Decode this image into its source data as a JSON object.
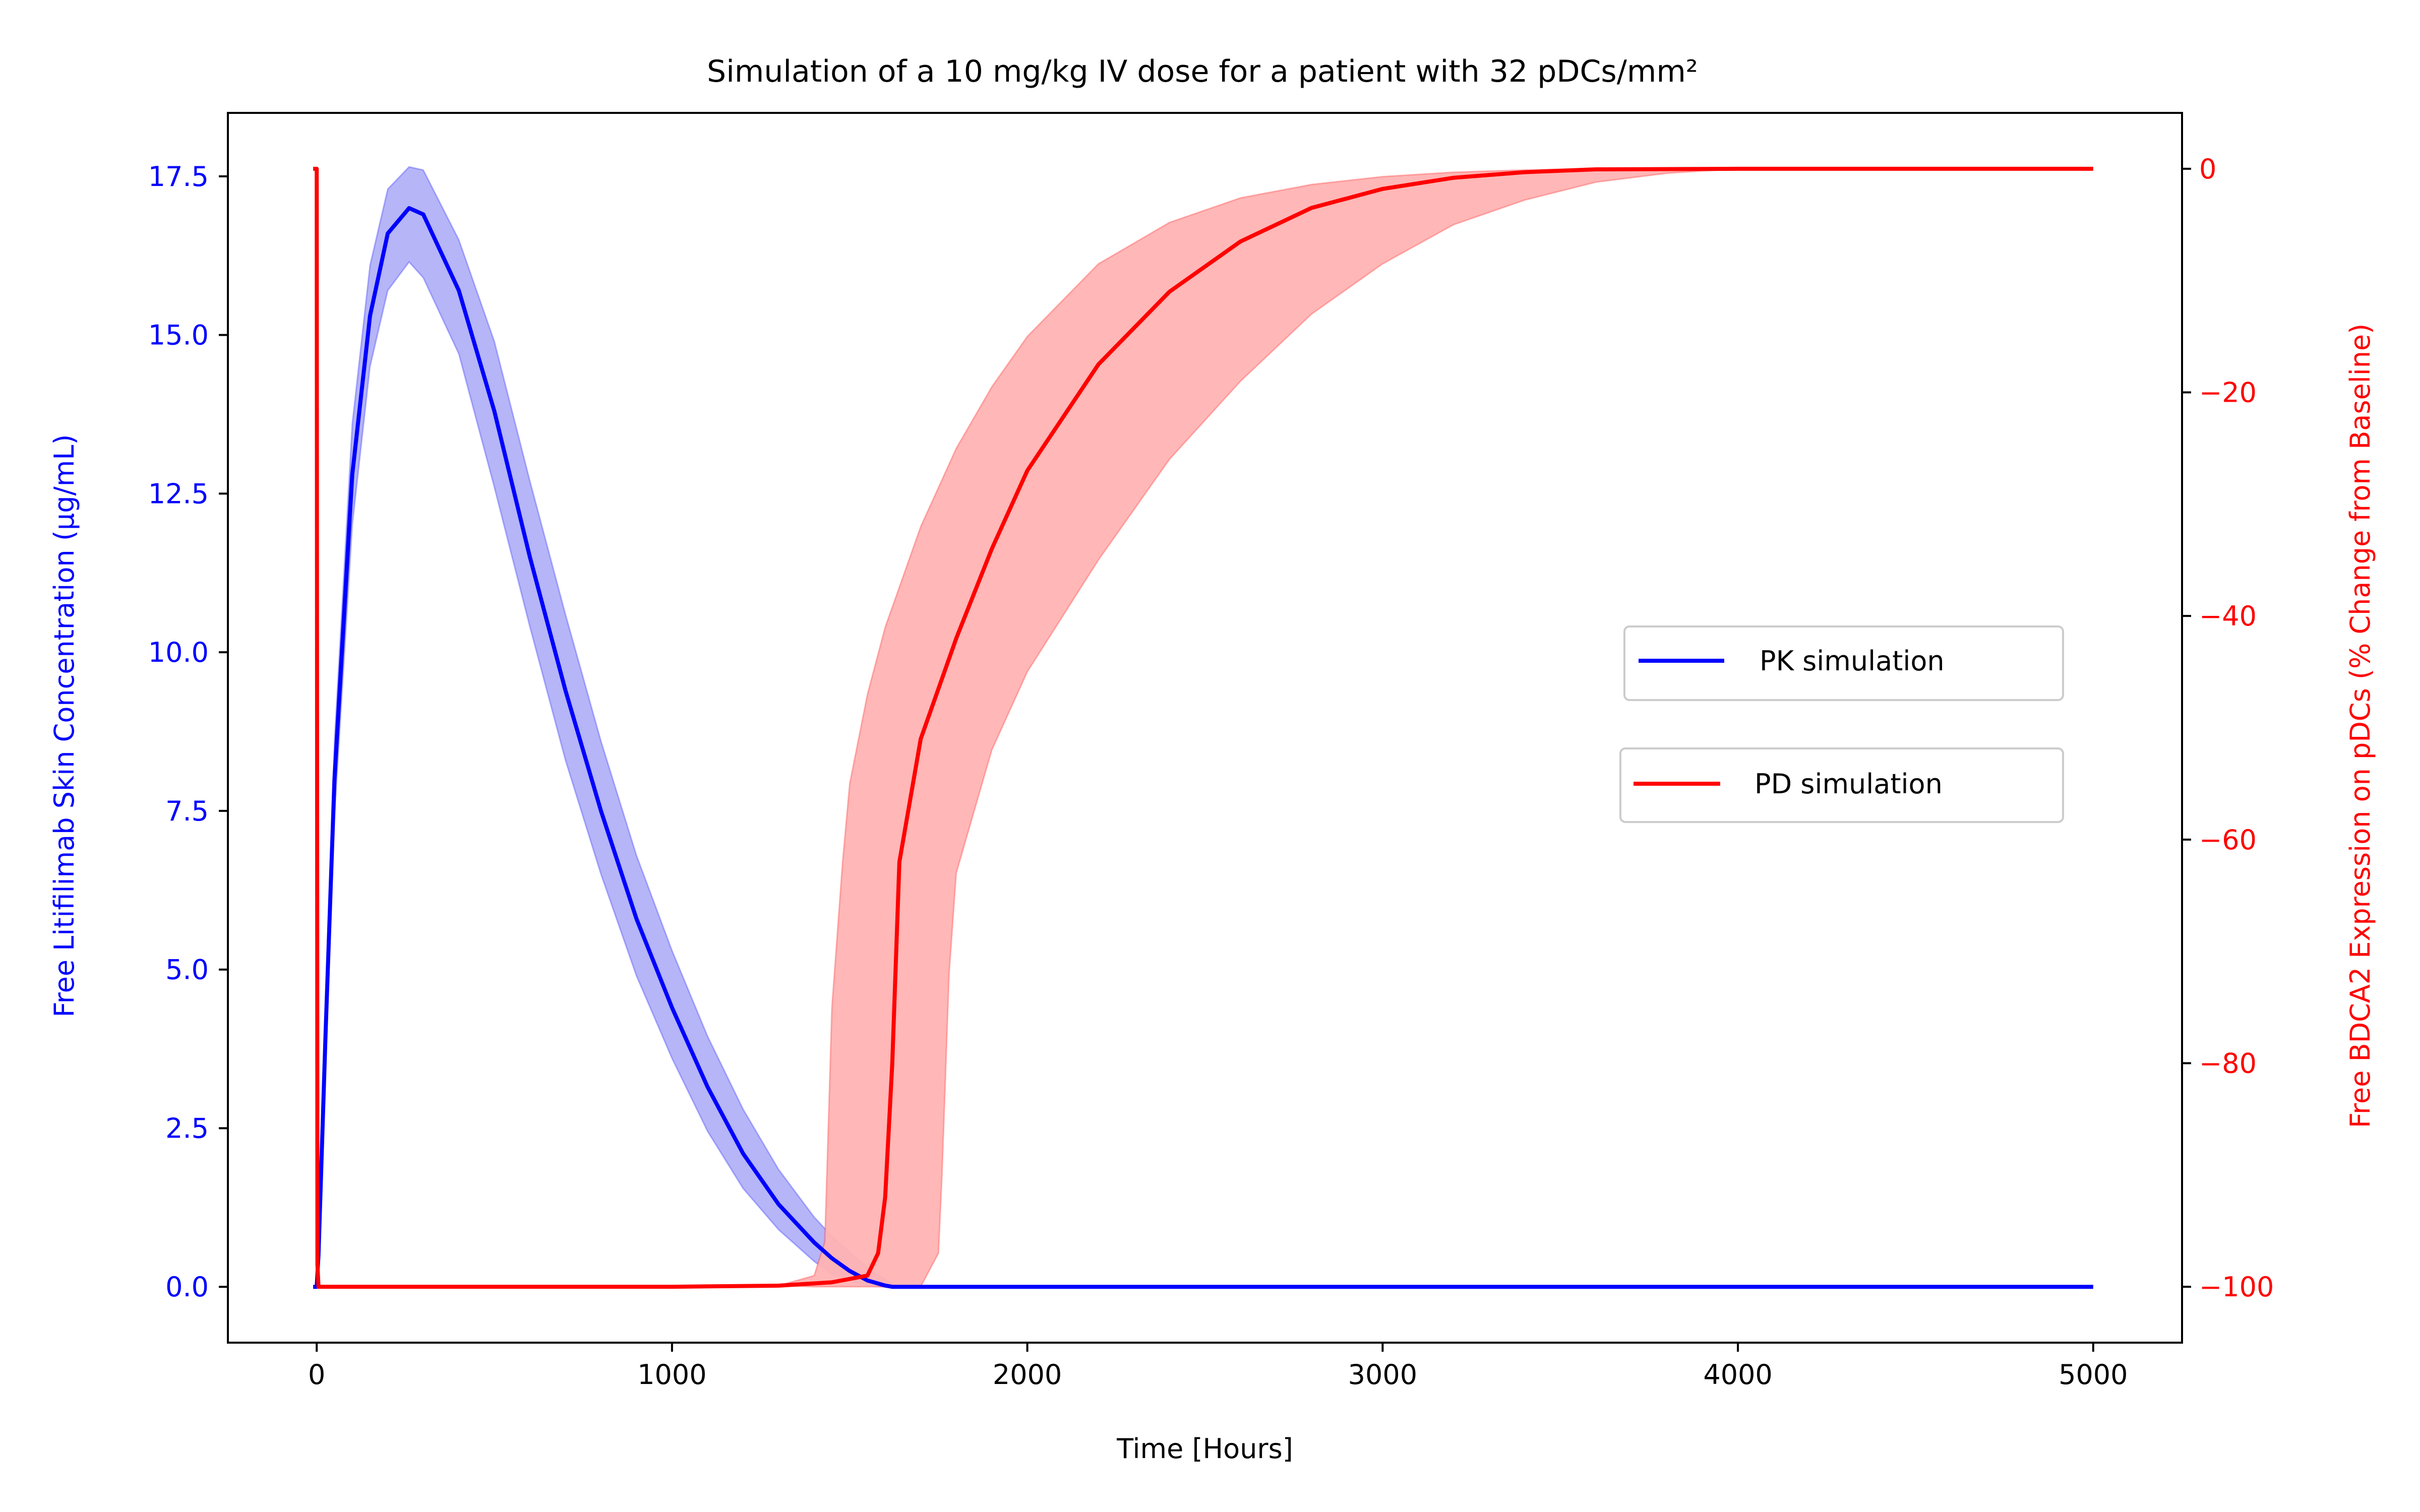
{
  "chart_data": {
    "type": "line",
    "title": "Simulation of a 10 mg/kg IV dose for a patient with 32 pDCs/mm²",
    "xlabel": "Time [Hours]",
    "ylabel_left": "Free Litifilimab Skin Concentration (μg/mL)",
    "ylabel_right": "Free BDCA2 Expression on pDCs (% Change from Baseline)",
    "xlim": [
      -250,
      5250
    ],
    "ylim_left": [
      -0.88,
      18.5
    ],
    "ylim_right": [
      -105,
      5
    ],
    "xticks": [
      0,
      1000,
      2000,
      3000,
      4000,
      5000
    ],
    "xtick_labels": [
      "0",
      "1000",
      "2000",
      "3000",
      "4000",
      "5000"
    ],
    "yticks_left": [
      0,
      2.5,
      5,
      7.5,
      10,
      12.5,
      15,
      17.5
    ],
    "ytick_labels_left": [
      "0.0",
      "2.5",
      "5.0",
      "7.5",
      "10.0",
      "12.5",
      "15.0",
      "17.5"
    ],
    "yticks_right": [
      0,
      -20,
      -40,
      -60,
      -80,
      -100
    ],
    "ytick_labels_right": [
      "0",
      "−20",
      "−40",
      "−60",
      "−80",
      "−100"
    ],
    "left_axis_color": "#0000ff",
    "right_axis_color": "#ff0000",
    "grid": false,
    "series": [
      {
        "name": "PK simulation",
        "axis": "left",
        "color": "#0000ff",
        "band_color": "#5a5af0",
        "x": [
          -10,
          0,
          5,
          25,
          50,
          100,
          150,
          200,
          260,
          300,
          400,
          500,
          600,
          700,
          800,
          900,
          1000,
          1100,
          1200,
          1300,
          1400,
          1450,
          1500,
          1550,
          1600,
          1620,
          1640,
          5000
        ],
        "y": [
          0,
          0,
          0.5,
          4.0,
          8.0,
          12.8,
          15.3,
          16.6,
          17.0,
          16.9,
          15.7,
          13.8,
          11.5,
          9.4,
          7.5,
          5.8,
          4.4,
          3.15,
          2.1,
          1.3,
          0.7,
          0.45,
          0.25,
          0.1,
          0.02,
          0,
          0,
          0
        ],
        "lower": [
          0,
          0,
          0.45,
          3.7,
          7.4,
          12.0,
          14.5,
          15.7,
          16.15,
          15.9,
          14.7,
          12.6,
          10.4,
          8.3,
          6.5,
          4.9,
          3.6,
          2.45,
          1.55,
          0.9,
          0.4,
          0.2,
          0.08,
          0.02,
          0,
          0,
          0,
          0
        ],
        "upper": [
          0,
          0,
          0.55,
          4.3,
          8.6,
          13.6,
          16.1,
          17.3,
          17.65,
          17.6,
          16.5,
          14.9,
          12.7,
          10.6,
          8.6,
          6.8,
          5.3,
          3.95,
          2.8,
          1.85,
          1.1,
          0.8,
          0.55,
          0.3,
          0.12,
          0.05,
          0,
          0
        ]
      },
      {
        "name": "PD simulation",
        "axis": "right",
        "color": "#ff0000",
        "band_color": "#ffb3b3",
        "x": [
          -10,
          0,
          2,
          5,
          50,
          500,
          1000,
          1300,
          1450,
          1550,
          1580,
          1600,
          1620,
          1640,
          1700,
          1800,
          1900,
          2000,
          2200,
          2400,
          2600,
          2800,
          3000,
          3200,
          3400,
          3600,
          4000,
          5000
        ],
        "y": [
          0,
          0,
          -98,
          -100,
          -100,
          -100,
          -100,
          -99.9,
          -99.6,
          -99,
          -97,
          -92,
          -80,
          -62,
          -51,
          -42,
          -34,
          -27,
          -17.5,
          -11,
          -6.5,
          -3.5,
          -1.8,
          -0.8,
          -0.3,
          -0.05,
          0,
          0
        ],
        "lower": [
          0,
          0,
          -98,
          -100,
          -100,
          -100,
          -100,
          -100,
          -100,
          -100,
          -100,
          -100,
          -100,
          -100,
          -100,
          -100,
          -100,
          -100,
          -100,
          -100,
          -100,
          -100,
          -100,
          -100,
          -100,
          -100,
          -100,
          -100
        ],
        "upper": [
          0,
          0,
          -98,
          -100,
          -100,
          -100,
          -100,
          -99.8,
          -98,
          -90,
          -88,
          -86,
          -84,
          -80,
          -73,
          -56,
          -45,
          -34,
          -26,
          -12,
          -6,
          -3,
          -1.5,
          -0.6,
          -0.2,
          -0.05,
          0,
          0
        ],
        "lower_band": {
          "x": [
            1400,
            1500,
            1600,
            1700,
            1750,
            1760,
            1780,
            1800,
            1900,
            2000,
            2200,
            2400,
            2600,
            2800,
            3000,
            3200,
            3400,
            3600,
            3800,
            4000,
            5000
          ],
          "y": [
            -100,
            -100,
            -100,
            -100,
            -97,
            -90,
            -72,
            -63,
            -52,
            -45,
            -35,
            -26,
            -19,
            -13,
            -8.5,
            -5,
            -2.8,
            -1.2,
            -0.4,
            0,
            0
          ]
        },
        "upper_band": {
          "x": [
            1300,
            1400,
            1430,
            1450,
            1480,
            1500,
            1550,
            1600,
            1700,
            1800,
            1900,
            2000,
            2200,
            2400,
            2600,
            2800,
            3000,
            3200,
            3400,
            3600,
            4000,
            5000
          ],
          "y": [
            -99.9,
            -99,
            -96,
            -75,
            -62,
            -55,
            -47,
            -41,
            -32,
            -25,
            -19.5,
            -15,
            -8.5,
            -4.8,
            -2.6,
            -1.4,
            -0.7,
            -0.3,
            -0.1,
            0,
            0,
            0
          ]
        }
      }
    ],
    "legend": [
      {
        "label": "PK simulation",
        "color": "#0000ff",
        "placement": "center-right"
      },
      {
        "label": "PD simulation",
        "color": "#ff0000",
        "placement": "center-right"
      }
    ]
  }
}
